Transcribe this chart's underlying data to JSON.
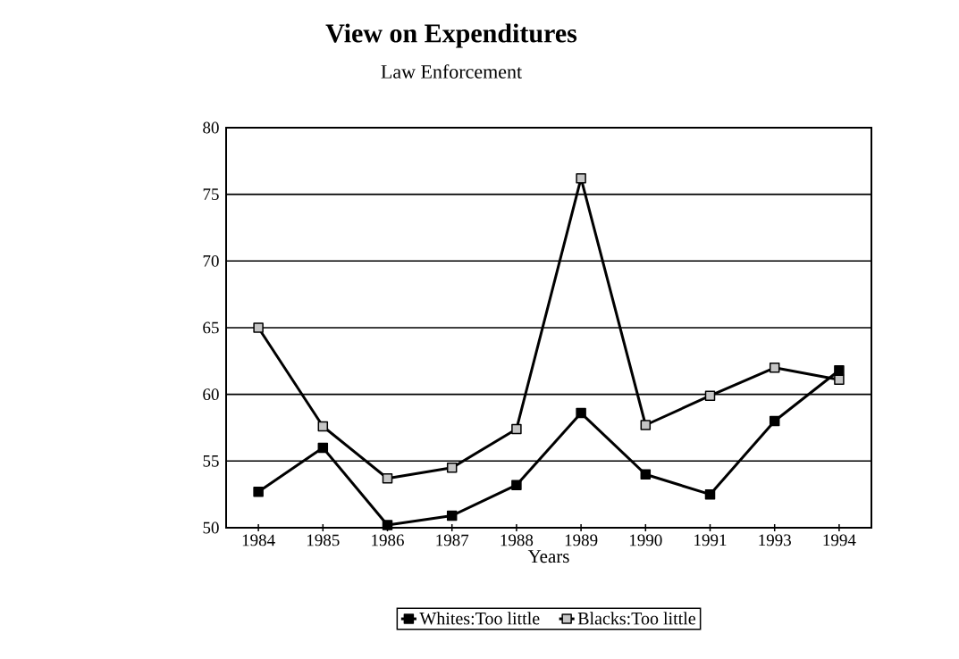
{
  "chart_data": {
    "type": "line",
    "title": "View on Expenditures",
    "subtitle": "Law Enforcement",
    "xlabel": "Years",
    "categories": [
      "1984",
      "1985",
      "1986",
      "1987",
      "1988",
      "1989",
      "1990",
      "1991",
      "1993",
      "1994"
    ],
    "series": [
      {
        "name": "Whites:Too little",
        "color": "#000000",
        "values": [
          52.7,
          56.0,
          50.2,
          50.9,
          53.2,
          58.6,
          54.0,
          52.5,
          58.0,
          61.8
        ]
      },
      {
        "name": "Blacks:Too little",
        "color": "#000000",
        "values": [
          65.0,
          57.6,
          53.7,
          54.5,
          57.4,
          76.2,
          57.7,
          59.9,
          62.0,
          61.1
        ]
      }
    ],
    "ylim": [
      50,
      80
    ],
    "yticks": [
      50,
      55,
      60,
      65,
      70,
      75,
      80
    ],
    "grid": "y",
    "legend": "bottom",
    "marker": "square",
    "line_style": "solid"
  }
}
